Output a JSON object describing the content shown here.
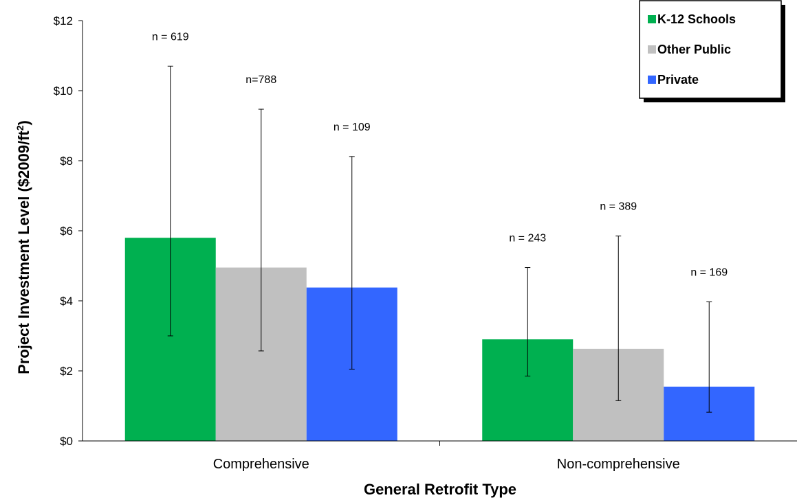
{
  "chart_data": {
    "type": "bar",
    "title": "",
    "xlabel": "General Retrofit Type",
    "ylabel_main": "Project Investment Level ($2009/ft",
    "ylabel_sup": "2",
    "ylabel_end": ")",
    "ylim": [
      0,
      12
    ],
    "y_ticks": [
      0,
      2,
      4,
      6,
      8,
      10,
      12
    ],
    "y_tick_labels": [
      "$0",
      "$2",
      "$4",
      "$6",
      "$8",
      "$10",
      "$12"
    ],
    "categories": [
      "Comprehensive",
      "Non-comprehensive"
    ],
    "legend_position": "top-right",
    "grid": false,
    "series": [
      {
        "name": "K-12 Schools",
        "color": "#00b050",
        "values": [
          5.8,
          2.9
        ],
        "err_low": [
          3.0,
          1.85
        ],
        "err_high": [
          10.7,
          4.95
        ],
        "n_labels": [
          "n = 619",
          "n = 243"
        ]
      },
      {
        "name": "Other Public",
        "color": "#c0c0c0",
        "values": [
          4.95,
          2.63
        ],
        "err_low": [
          2.57,
          1.15
        ],
        "err_high": [
          9.47,
          5.85
        ],
        "n_labels": [
          "n=788",
          "n = 389"
        ]
      },
      {
        "name": "Private",
        "color": "#3366ff",
        "values": [
          4.38,
          1.55
        ],
        "err_low": [
          2.05,
          0.82
        ],
        "err_high": [
          8.12,
          3.97
        ],
        "n_labels": [
          "n = 109",
          "n = 169"
        ]
      }
    ]
  }
}
